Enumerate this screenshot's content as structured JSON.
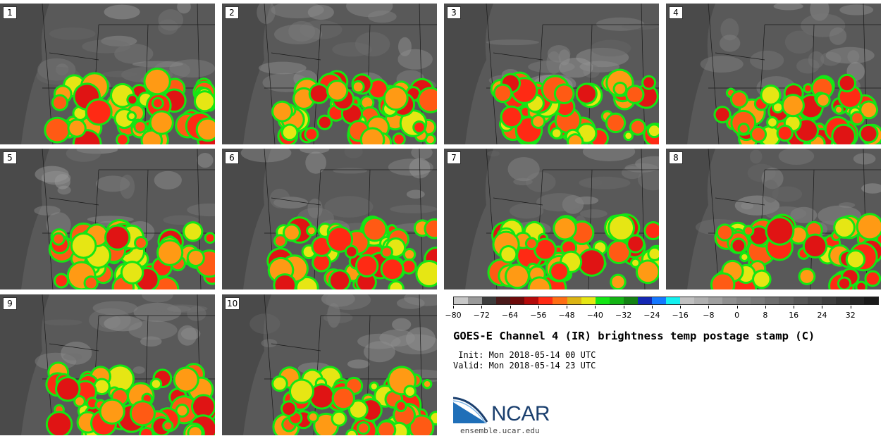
{
  "panels": [
    {
      "label": "1",
      "seed": 11
    },
    {
      "label": "2",
      "seed": 23
    },
    {
      "label": "3",
      "seed": 37
    },
    {
      "label": "4",
      "seed": 41
    },
    {
      "label": "5",
      "seed": 53
    },
    {
      "label": "6",
      "seed": 67
    },
    {
      "label": "7",
      "seed": 71
    },
    {
      "label": "8",
      "seed": 83
    },
    {
      "label": "9",
      "seed": 97
    },
    {
      "label": "10",
      "seed": 109
    }
  ],
  "colorbar": {
    "colors": [
      "#c8c8c8",
      "#9a9a9a",
      "#3c3c3c",
      "#4a1a1a",
      "#6e0a0a",
      "#b40a0a",
      "#ff2a14",
      "#ff6e14",
      "#dcb414",
      "#e6e614",
      "#14e614",
      "#14b414",
      "#148214",
      "#1428b4",
      "#1478ff",
      "#14f0f0",
      "#c0c0c0",
      "#b0b0b0",
      "#a0a0a0",
      "#909090",
      "#858585",
      "#7a7a7a",
      "#6e6e6e",
      "#626262",
      "#565656",
      "#4a4a4a",
      "#3e3e3e",
      "#323232",
      "#262626",
      "#1a1a1a"
    ],
    "min": -80,
    "max": 40,
    "ticks": [
      "−80",
      "−72",
      "−64",
      "−56",
      "−48",
      "−40",
      "−32",
      "−24",
      "−16",
      "−8",
      "0",
      "8",
      "16",
      "24",
      "32"
    ]
  },
  "title": "GOES-E Channel 4 (IR) brightness temp postage stamp (C)",
  "init": " Init: Mon 2018-05-14 00 UTC",
  "valid": "Valid: Mon 2018-05-14 23 UTC",
  "logo": {
    "text": "NCAR",
    "url": "ensemble.ucar.edu"
  }
}
